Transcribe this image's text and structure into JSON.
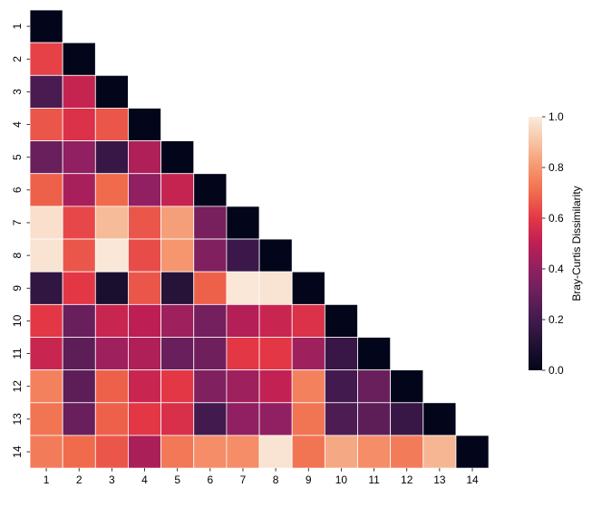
{
  "chart_data": {
    "type": "heatmap",
    "title": "",
    "xlabel": "",
    "ylabel": "",
    "x_categories": [
      "1",
      "2",
      "3",
      "4",
      "5",
      "6",
      "7",
      "8",
      "9",
      "10",
      "11",
      "12",
      "13",
      "14"
    ],
    "y_categories": [
      "1",
      "2",
      "3",
      "4",
      "5",
      "6",
      "7",
      "8",
      "9",
      "10",
      "11",
      "12",
      "13",
      "14"
    ],
    "lower_triangle_only": true,
    "values": [
      [
        0.0
      ],
      [
        0.62,
        0.0
      ],
      [
        0.22,
        0.52,
        0.0
      ],
      [
        0.66,
        0.58,
        0.66,
        0.0
      ],
      [
        0.3,
        0.4,
        0.17,
        0.47,
        0.0
      ],
      [
        0.68,
        0.45,
        0.7,
        0.4,
        0.52,
        0.0
      ],
      [
        0.97,
        0.63,
        0.88,
        0.66,
        0.82,
        0.34,
        0.0
      ],
      [
        0.98,
        0.66,
        0.99,
        0.64,
        0.8,
        0.36,
        0.18,
        0.0
      ],
      [
        0.15,
        0.6,
        0.08,
        0.66,
        0.12,
        0.68,
        0.99,
        0.98,
        0.0
      ],
      [
        0.6,
        0.3,
        0.53,
        0.5,
        0.43,
        0.33,
        0.48,
        0.53,
        0.58,
        0.0
      ],
      [
        0.53,
        0.27,
        0.43,
        0.47,
        0.3,
        0.32,
        0.6,
        0.6,
        0.43,
        0.17,
        0.0
      ],
      [
        0.75,
        0.27,
        0.68,
        0.53,
        0.6,
        0.36,
        0.43,
        0.51,
        0.75,
        0.2,
        0.3,
        0.0
      ],
      [
        0.72,
        0.3,
        0.68,
        0.6,
        0.57,
        0.2,
        0.4,
        0.4,
        0.72,
        0.23,
        0.27,
        0.17,
        0.0
      ],
      [
        0.74,
        0.7,
        0.66,
        0.46,
        0.73,
        0.78,
        0.78,
        0.98,
        0.72,
        0.84,
        0.78,
        0.74,
        0.87,
        0.0
      ]
    ],
    "colorbar": {
      "label": "Bray-Curtis Dissimilarity",
      "range": [
        0.0,
        1.0
      ],
      "ticks": [
        "0.0",
        "0.2",
        "0.4",
        "0.6",
        "0.8",
        "1.0"
      ],
      "colormap": "rocket"
    },
    "grid": false,
    "legend": "none"
  },
  "colors": {
    "cell_border": "#ffffff",
    "background": "#ffffff"
  }
}
